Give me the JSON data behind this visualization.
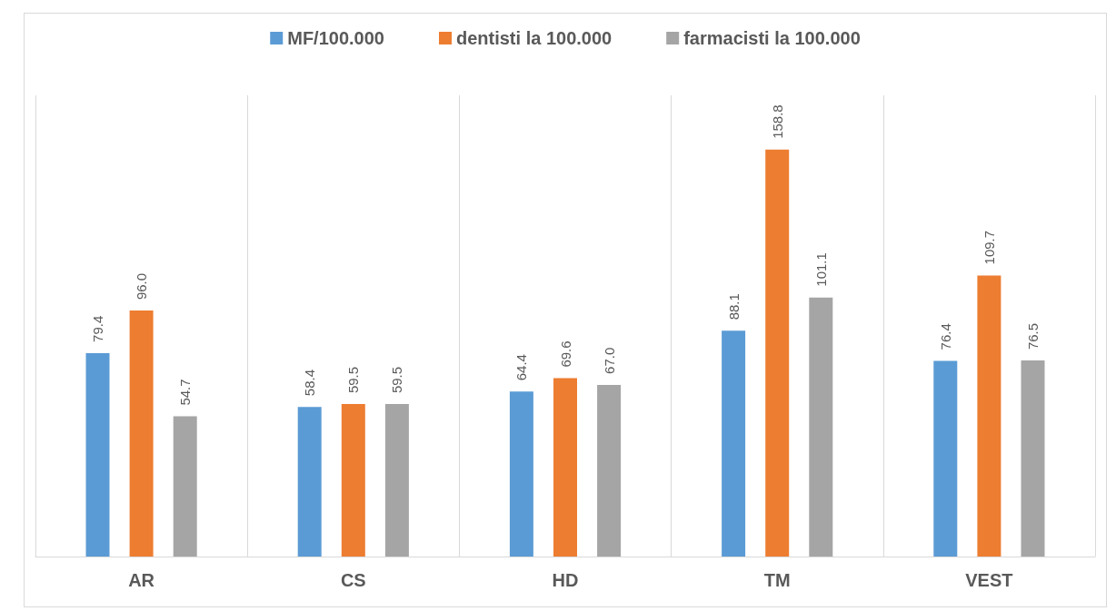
{
  "chart_data": {
    "type": "bar",
    "categories": [
      "AR",
      "CS",
      "HD",
      "TM",
      "VEST"
    ],
    "series": [
      {
        "name": "MF/100.000",
        "color": "#5b9bd5",
        "values": [
          79.4,
          58.4,
          64.4,
          88.1,
          76.4
        ],
        "value_labels": [
          "79.4",
          "58.4",
          "64.4",
          "88.1",
          "76.4"
        ]
      },
      {
        "name": "dentisti la 100.000",
        "color": "#ed7d31",
        "values": [
          96.0,
          59.5,
          69.6,
          158.8,
          109.7
        ],
        "value_labels": [
          "96.0",
          "59.5",
          "69.6",
          "158.8",
          "109.7"
        ]
      },
      {
        "name": "farmacisti la 100.000",
        "color": "#a5a5a5",
        "values": [
          54.7,
          59.5,
          67.0,
          101.1,
          76.5
        ],
        "value_labels": [
          "54.7",
          "59.5",
          "67.0",
          "101.1",
          "76.5"
        ]
      }
    ],
    "grid": "x",
    "legend": "top"
  }
}
